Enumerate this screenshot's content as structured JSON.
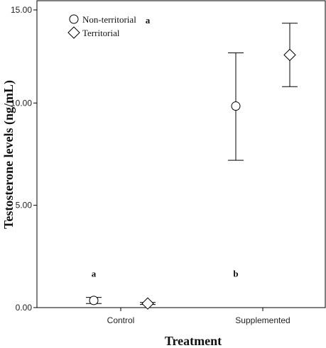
{
  "chart_data": {
    "type": "scatter",
    "title": "",
    "xlabel": "Treatment",
    "ylabel": "Testosterone levels (ng/mL)",
    "categories": [
      "Control",
      "Supplemented"
    ],
    "ylim": [
      0,
      15
    ],
    "yticks": [
      0,
      5,
      10,
      15
    ],
    "ytick_labels": [
      "0.00",
      "5.00",
      "10.00",
      "15.00"
    ],
    "grid": false,
    "legend_position": "top-left",
    "series": [
      {
        "name": "Non-territorial",
        "marker": "circle",
        "values": [
          0.35,
          9.85
        ],
        "error_low": [
          0.2,
          7.2
        ],
        "error_high": [
          0.5,
          12.45
        ],
        "sig_labels": [
          "a",
          "b"
        ]
      },
      {
        "name": "Territorial",
        "marker": "diamond",
        "values": [
          0.2,
          12.35
        ],
        "error_low": [
          0.15,
          10.8
        ],
        "error_high": [
          0.25,
          13.9
        ],
        "sig_labels": [
          "a",
          "b"
        ]
      }
    ],
    "sig_label_values": [
      [
        1.5,
        13.9
      ],
      [
        1.5,
        15.1
      ]
    ],
    "colors": {
      "marker": "#000000",
      "axis": "#000000"
    }
  }
}
